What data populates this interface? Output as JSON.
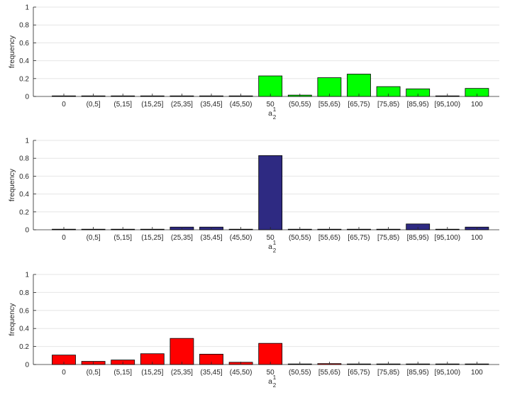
{
  "chart_data": [
    {
      "type": "bar",
      "xlabel": "a",
      "xlabel_sup": "1",
      "xlabel_sub": "2",
      "ylabel": "frequency",
      "ylim": [
        0,
        1
      ],
      "yticks": [
        "0",
        "0.2",
        "0.4",
        "0.6",
        "0.8",
        "1"
      ],
      "grid": true,
      "color": "#00ff00",
      "categories": [
        "0",
        "(0,5]",
        "(5,15]",
        "(15,25]",
        "(25,35]",
        "(35,45]",
        "(45,50)",
        "50",
        "(50,55)",
        "[55,65)",
        "[65,75)",
        "[75,85)",
        "[85,95)",
        "[95,100)",
        "100"
      ],
      "values": [
        0,
        0,
        0,
        0,
        0,
        0,
        0,
        0.23,
        0.015,
        0.21,
        0.25,
        0.11,
        0.085,
        0,
        0.09
      ]
    },
    {
      "type": "bar",
      "xlabel": "a",
      "xlabel_sup": "1",
      "xlabel_sub": "2",
      "ylabel": "frequency",
      "ylim": [
        0,
        1
      ],
      "yticks": [
        "0",
        "0.2",
        "0.4",
        "0.6",
        "0.8",
        "1"
      ],
      "grid": true,
      "color": "#2e2a82",
      "categories": [
        "0",
        "(0,5]",
        "(5,15]",
        "(15,25]",
        "(25,35]",
        "(35,45]",
        "(45,50)",
        "50",
        "(50,55)",
        "[55,65)",
        "[65,75)",
        "[75,85)",
        "[85,95)",
        "[95,100)",
        "100"
      ],
      "values": [
        0,
        0,
        0,
        0,
        0.03,
        0.03,
        0,
        0.83,
        0,
        0,
        0,
        0,
        0.065,
        0,
        0.03
      ]
    },
    {
      "type": "bar",
      "xlabel": "a",
      "xlabel_sup": "1",
      "xlabel_sub": "2",
      "ylabel": "frequency",
      "ylim": [
        0,
        1
      ],
      "yticks": [
        "0",
        "0.2",
        "0.4",
        "0.6",
        "0.8",
        "1"
      ],
      "grid": true,
      "color": "#ff0000",
      "categories": [
        "0",
        "(0,5]",
        "(5,15]",
        "(15,25]",
        "(25,35]",
        "(35,45]",
        "(45,50)",
        "50",
        "(50,55)",
        "[55,65)",
        "[65,75)",
        "[75,85)",
        "[85,95)",
        "[95,100)",
        "100"
      ],
      "values": [
        0.105,
        0.035,
        0.05,
        0.12,
        0.29,
        0.115,
        0.025,
        0.235,
        0,
        0.01,
        0,
        0,
        0,
        0,
        0
      ]
    }
  ]
}
